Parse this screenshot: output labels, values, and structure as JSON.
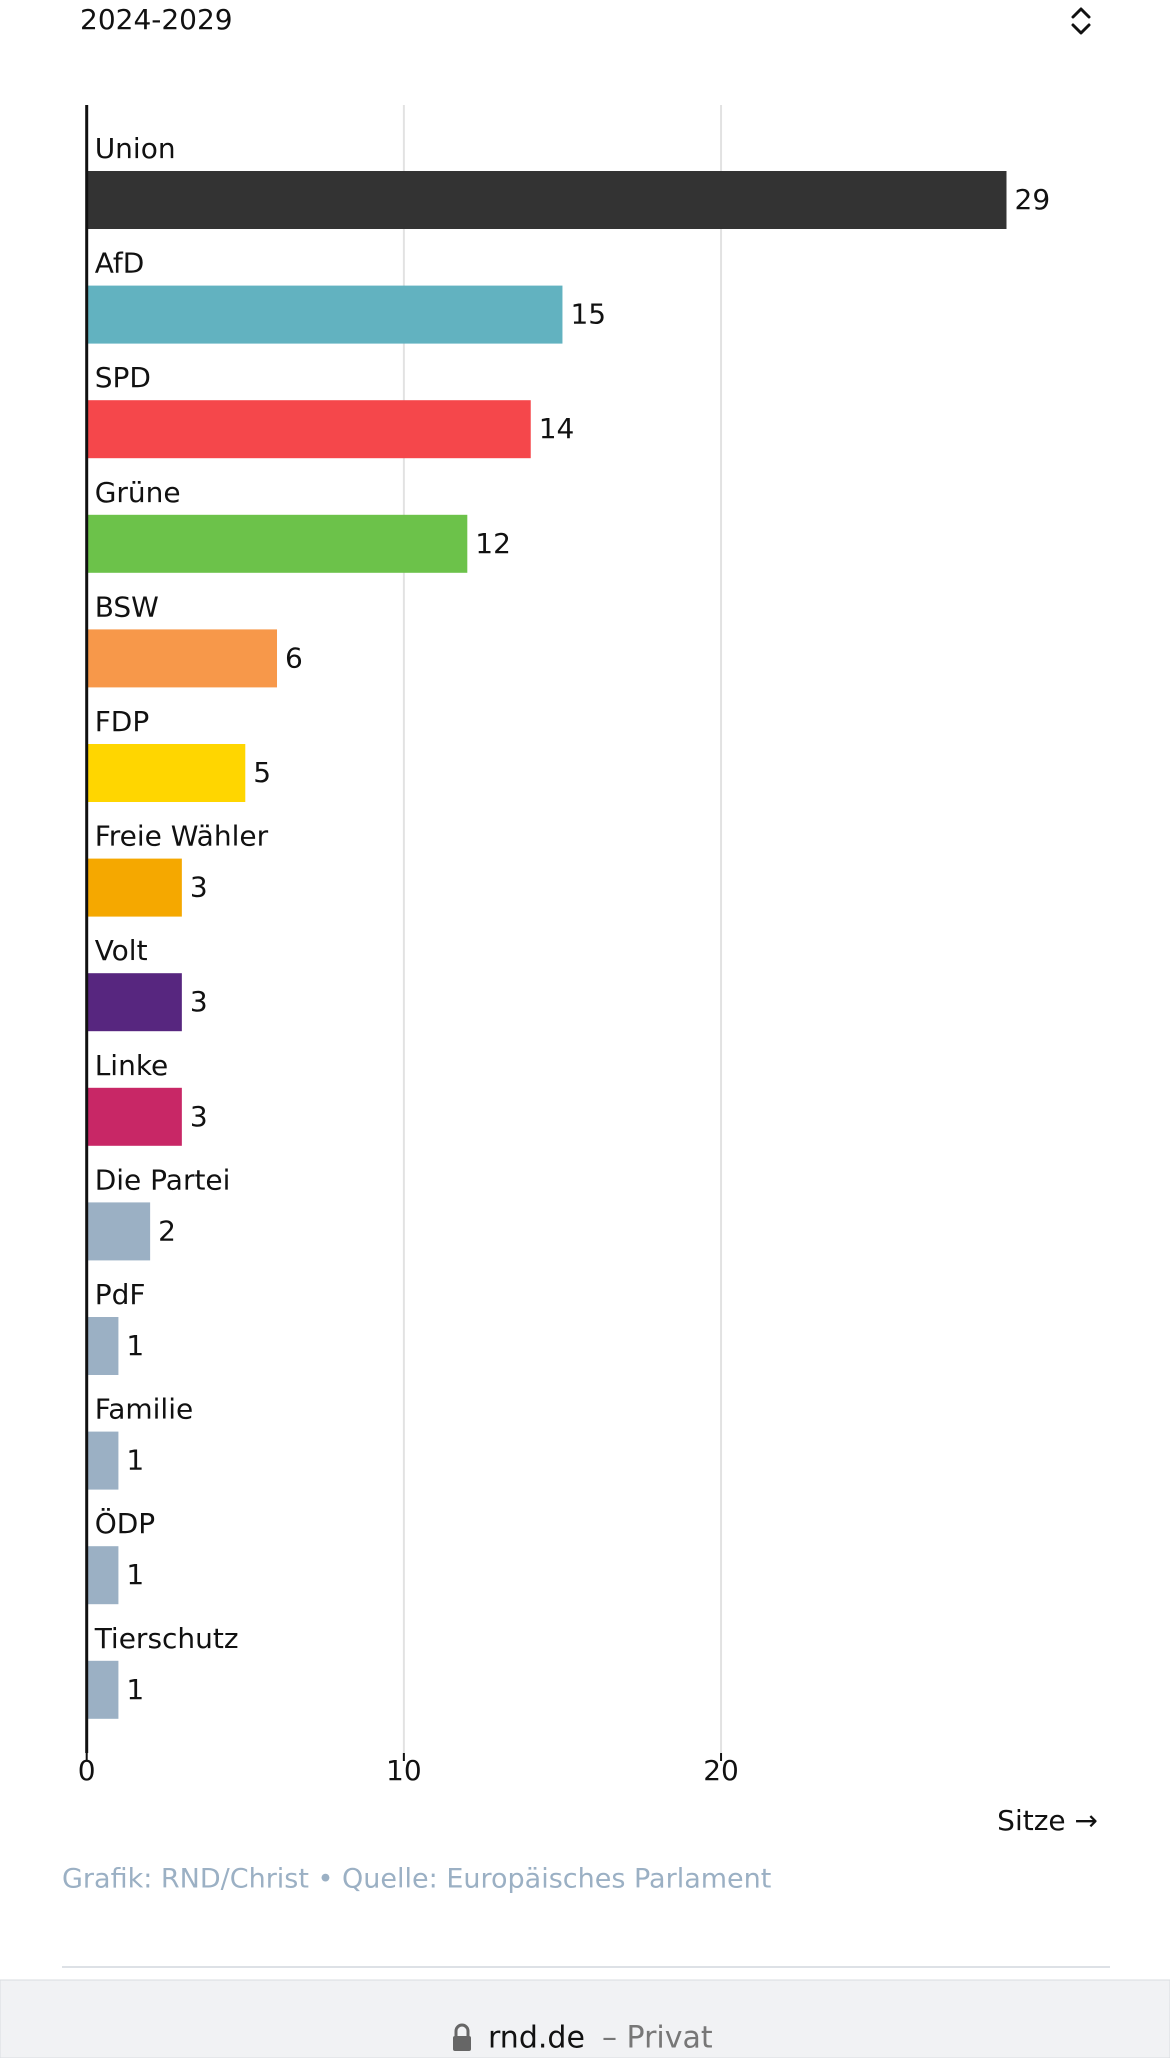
{
  "selector": "2024-2029",
  "chart_data": {
    "type": "bar",
    "orientation": "horizontal",
    "categories": [
      "Union",
      "AfD",
      "SPD",
      "Grüne",
      "BSW",
      "FDP",
      "Freie Wähler",
      "Volt",
      "Linke",
      "Die Partei",
      "PdF",
      "Familie",
      "ÖDP",
      "Tierschutz"
    ],
    "values": [
      29,
      15,
      14,
      12,
      6,
      5,
      3,
      3,
      3,
      2,
      1,
      1,
      1,
      1
    ],
    "colors": [
      "#333333",
      "#62b2c0",
      "#f5474b",
      "#6cc24a",
      "#f7984a",
      "#ffd600",
      "#f5a800",
      "#57267f",
      "#c82766",
      "#9bb0c4",
      "#9bb0c4",
      "#9bb0c4",
      "#9bb0c4",
      "#9bb0c4"
    ],
    "xlim": [
      0,
      29
    ],
    "xticks": [
      0,
      10,
      20
    ],
    "grid": true,
    "x_label": "Sitze →"
  },
  "source": "Grafik: RND/Christ • Quelle: Europäisches Parlament",
  "footer": {
    "domain": "rnd.de",
    "mode": "– Privat"
  }
}
